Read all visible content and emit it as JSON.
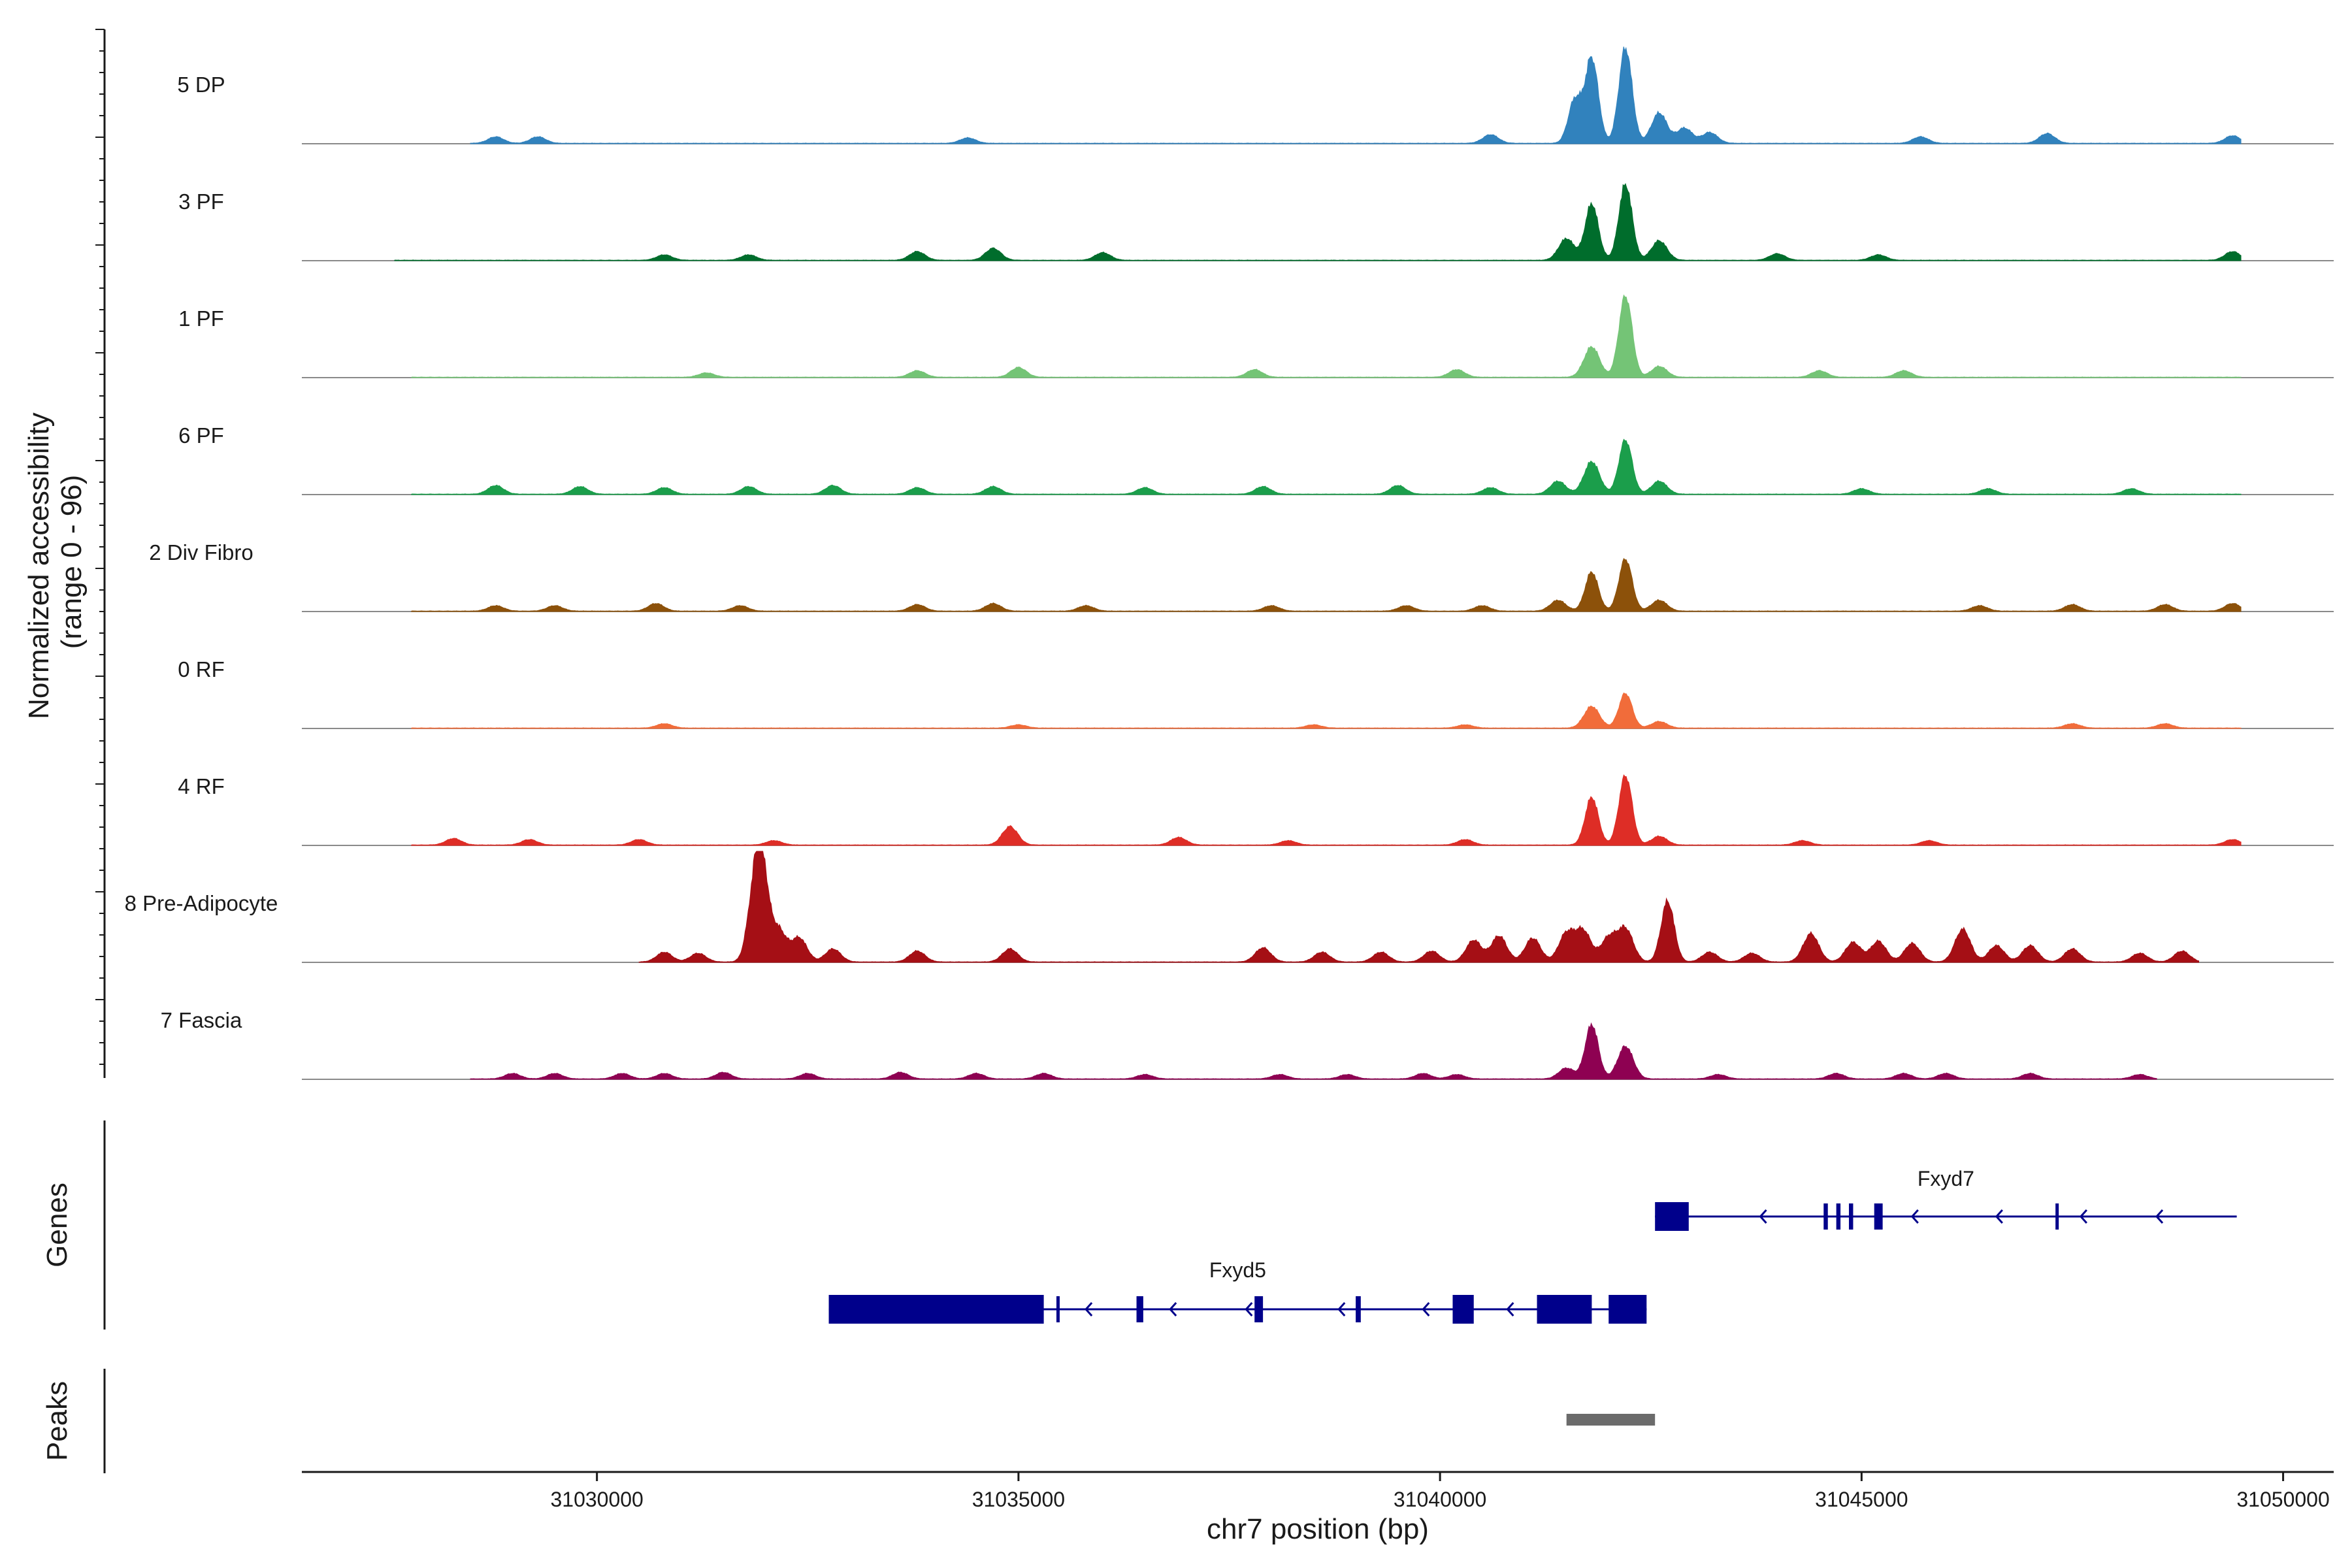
{
  "chart_data": {
    "type": "area",
    "title": "",
    "xlabel": "chr7 position (bp)",
    "ylabel": "Normalized accessibility\n(range 0 - 96)",
    "y_range": [
      0,
      96
    ],
    "xlim": [
      31026500,
      31050600
    ],
    "x_ticks": [
      31030000,
      31035000,
      31040000,
      31045000,
      31050000
    ],
    "x_tick_labels": [
      "31030000",
      "31035000",
      "31040000",
      "31045000",
      "31050000"
    ],
    "tracks": [
      {
        "name": "5 DP",
        "color": "#3182bd",
        "start": 31028500,
        "end": 31049500,
        "peaks": [
          [
            31041800,
            78
          ],
          [
            31042200,
            88
          ],
          [
            31041600,
            40
          ],
          [
            31042600,
            28
          ],
          [
            31042900,
            14
          ],
          [
            31043200,
            10
          ],
          [
            31040600,
            8
          ],
          [
            31028800,
            6
          ],
          [
            31029300,
            6
          ],
          [
            31047200,
            9
          ],
          [
            31049400,
            7
          ],
          [
            31045700,
            6
          ],
          [
            31034400,
            5
          ]
        ]
      },
      {
        "name": "3 PF",
        "color": "#006d2c",
        "start": 31027600,
        "end": 31049500,
        "peaks": [
          [
            31041800,
            52
          ],
          [
            31042200,
            70
          ],
          [
            31041500,
            20
          ],
          [
            31042600,
            18
          ],
          [
            31034700,
            11
          ],
          [
            31033800,
            8
          ],
          [
            31036000,
            7
          ],
          [
            31049400,
            8
          ],
          [
            31030800,
            5
          ],
          [
            31031800,
            5
          ],
          [
            31044000,
            6
          ],
          [
            31045200,
            5
          ]
        ]
      },
      {
        "name": "1 PF",
        "color": "#74c476",
        "start": 31027800,
        "end": 31049500,
        "peaks": [
          [
            31041800,
            28
          ],
          [
            31042200,
            75
          ],
          [
            31042600,
            10
          ],
          [
            31035000,
            9
          ],
          [
            31033800,
            6
          ],
          [
            31037800,
            7
          ],
          [
            31040200,
            7
          ],
          [
            31044500,
            6
          ],
          [
            31045500,
            6
          ],
          [
            31031300,
            4
          ]
        ]
      },
      {
        "name": "6 PF",
        "color": "#1b9e4b",
        "start": 31027800,
        "end": 31049500,
        "peaks": [
          [
            31041800,
            30
          ],
          [
            31042200,
            50
          ],
          [
            31041400,
            12
          ],
          [
            31042600,
            12
          ],
          [
            31028800,
            8
          ],
          [
            31029800,
            7
          ],
          [
            31030800,
            6
          ],
          [
            31031800,
            7
          ],
          [
            31032800,
            8
          ],
          [
            31033800,
            6
          ],
          [
            31034700,
            7
          ],
          [
            31036500,
            6
          ],
          [
            31037900,
            7
          ],
          [
            31039500,
            8
          ],
          [
            31040600,
            6
          ],
          [
            31045000,
            5
          ],
          [
            31046500,
            5
          ],
          [
            31048200,
            5
          ]
        ]
      },
      {
        "name": "2 Div Fibro",
        "color": "#8c510a",
        "start": 31027800,
        "end": 31049500,
        "peaks": [
          [
            31041800,
            36
          ],
          [
            31042200,
            48
          ],
          [
            31042600,
            10
          ],
          [
            31041400,
            10
          ],
          [
            31028800,
            5
          ],
          [
            31029500,
            5
          ],
          [
            31030700,
            7
          ],
          [
            31031700,
            5
          ],
          [
            31033800,
            6
          ],
          [
            31034700,
            7
          ],
          [
            31035800,
            5
          ],
          [
            31038000,
            5
          ],
          [
            31039600,
            5
          ],
          [
            31040500,
            5
          ],
          [
            31046400,
            5
          ],
          [
            31047500,
            6
          ],
          [
            31048600,
            6
          ],
          [
            31049400,
            7
          ]
        ]
      },
      {
        "name": "0 RF",
        "color": "#f16c3a",
        "start": 31027800,
        "end": 31049500,
        "peaks": [
          [
            31041800,
            20
          ],
          [
            31042200,
            32
          ],
          [
            31042600,
            6
          ],
          [
            31030800,
            4
          ],
          [
            31035000,
            3
          ],
          [
            31038500,
            3
          ],
          [
            31040300,
            3
          ],
          [
            31047500,
            4
          ],
          [
            31048600,
            4
          ]
        ]
      },
      {
        "name": "4 RF",
        "color": "#de2d26",
        "start": 31027800,
        "end": 31049500,
        "peaks": [
          [
            31041800,
            44
          ],
          [
            31042200,
            64
          ],
          [
            31042600,
            8
          ],
          [
            31034900,
            17
          ],
          [
            31036900,
            7
          ],
          [
            31028300,
            6
          ],
          [
            31029200,
            5
          ],
          [
            31030500,
            5
          ],
          [
            31032100,
            4
          ],
          [
            31038200,
            4
          ],
          [
            31040300,
            5
          ],
          [
            31044300,
            4
          ],
          [
            31045800,
            4
          ],
          [
            31049400,
            5
          ]
        ]
      },
      {
        "name": "8 Pre-Adipocyte",
        "color": "#a50f15",
        "start": 31030500,
        "end": 31049000,
        "peaks": [
          [
            31031950,
            90
          ],
          [
            31031850,
            44
          ],
          [
            31032150,
            30
          ],
          [
            31032400,
            22
          ],
          [
            31032800,
            12
          ],
          [
            31030800,
            9
          ],
          [
            31031200,
            8
          ],
          [
            31033800,
            10
          ],
          [
            31034900,
            12
          ],
          [
            31037900,
            13
          ],
          [
            31038600,
            9
          ],
          [
            31039300,
            9
          ],
          [
            31039900,
            10
          ],
          [
            31040400,
            20
          ],
          [
            31040700,
            24
          ],
          [
            31041100,
            22
          ],
          [
            31041500,
            26
          ],
          [
            31041700,
            28
          ],
          [
            31042000,
            22
          ],
          [
            31042200,
            30
          ],
          [
            31042700,
            56
          ],
          [
            31043200,
            9
          ],
          [
            31043700,
            8
          ],
          [
            31044400,
            26
          ],
          [
            31044900,
            18
          ],
          [
            31045200,
            19
          ],
          [
            31045600,
            17
          ],
          [
            31046200,
            30
          ],
          [
            31046600,
            15
          ],
          [
            31047000,
            15
          ],
          [
            31047500,
            12
          ],
          [
            31048300,
            8
          ],
          [
            31048800,
            10
          ]
        ]
      },
      {
        "name": "7 Fascia",
        "color": "#8e0152",
        "start": 31028500,
        "end": 31048500,
        "peaks": [
          [
            31041800,
            50
          ],
          [
            31042200,
            30
          ],
          [
            31041500,
            10
          ],
          [
            31029000,
            5
          ],
          [
            31029500,
            5
          ],
          [
            31030300,
            5
          ],
          [
            31030800,
            5
          ],
          [
            31031500,
            6
          ],
          [
            31032500,
            5
          ],
          [
            31033600,
            6
          ],
          [
            31034500,
            5
          ],
          [
            31035300,
            5
          ],
          [
            31036500,
            4
          ],
          [
            31038100,
            4
          ],
          [
            31038900,
            4
          ],
          [
            31039800,
            5
          ],
          [
            31040200,
            4
          ],
          [
            31043300,
            4
          ],
          [
            31044700,
            5
          ],
          [
            31045500,
            5
          ],
          [
            31046000,
            5
          ],
          [
            31047000,
            5
          ],
          [
            31048300,
            4
          ]
        ]
      }
    ],
    "genes": [
      {
        "name": "Fxyd7",
        "strand": "-",
        "start": 31042550,
        "end": 31049450,
        "exons": [
          [
            31042550,
            31042950
          ],
          [
            31044550,
            31044600
          ],
          [
            31044700,
            31044750
          ],
          [
            31044850,
            31044900
          ],
          [
            31045150,
            31045250
          ],
          [
            31047300,
            31047330
          ]
        ],
        "arrows": [
          31043800,
          31045600,
          31046600,
          31047600,
          31048500
        ]
      },
      {
        "name": "Fxyd5",
        "strand": "-",
        "start": 31032750,
        "end": 31042450,
        "exons": [
          [
            31032750,
            31035300
          ],
          [
            31035450,
            31035480
          ],
          [
            31036400,
            31036480
          ],
          [
            31037800,
            31037900
          ],
          [
            31039000,
            31039060
          ],
          [
            31040150,
            31040400
          ],
          [
            31041150,
            31041800
          ],
          [
            31042000,
            31042450
          ]
        ],
        "arrows": [
          31035800,
          31036800,
          31037700,
          31038800,
          31039800,
          31040800
        ]
      }
    ],
    "peaks": [
      {
        "start": 31041500,
        "end": 31042550
      }
    ],
    "panel_titles": [
      "Genes",
      "Peaks"
    ]
  }
}
